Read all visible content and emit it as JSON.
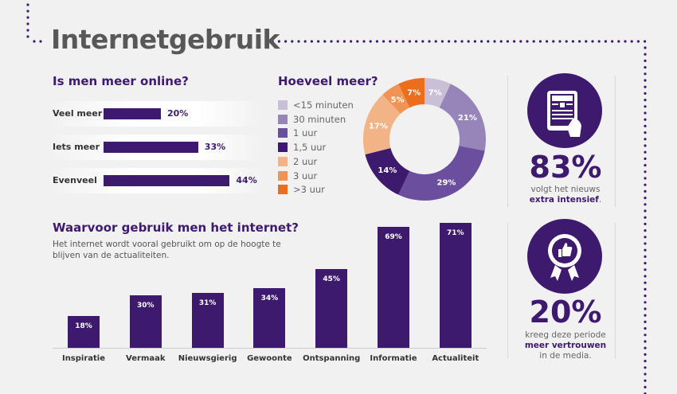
{
  "title": "Internetgebruik",
  "colors": {
    "purple": "#3d1a6e",
    "background": "#f1f1f1",
    "title_grey": "#58585a"
  },
  "chart_data": [
    {
      "type": "bar",
      "orientation": "horizontal",
      "title": "Is men meer online?",
      "categories": [
        "Veel meer",
        "Iets meer",
        "Evenveel"
      ],
      "values": [
        20,
        33,
        44
      ],
      "labels": [
        "20%",
        "33%",
        "44%"
      ]
    },
    {
      "type": "pie",
      "donut": true,
      "title": "Hoeveel meer?",
      "categories": [
        "<15 minuten",
        "30 minuten",
        "1 uur",
        "1,5 uur",
        "2 uur",
        "3 uur",
        ">3 uur"
      ],
      "values": [
        7,
        21,
        29,
        14,
        17,
        5,
        7
      ],
      "labels": [
        "7%",
        "21%",
        "29%",
        "14%",
        "17%",
        "5%",
        "7%"
      ],
      "colors": [
        "#c9c0d8",
        "#9585b8",
        "#6b4f9e",
        "#3d1a6e",
        "#f2b486",
        "#ef9455",
        "#ec6d1c"
      ],
      "legend": "left"
    },
    {
      "type": "bar",
      "title": "Waarvoor gebruik men het internet?",
      "subtitle": "Het internet wordt vooral gebruikt om op de hoogte te blijven van de actualiteiten.",
      "categories": [
        "Inspiratie",
        "Vermaak",
        "Nieuwsgierig",
        "Gewoonte",
        "Ontspanning",
        "Informatie",
        "Actualiteit"
      ],
      "values": [
        18,
        30,
        31,
        34,
        45,
        69,
        71
      ],
      "labels": [
        "18%",
        "30%",
        "31%",
        "34%",
        "45%",
        "69%",
        "71%"
      ]
    }
  ],
  "stats": [
    {
      "icon": "news-tablet-icon",
      "value": "83%",
      "line1": "volgt het nieuws",
      "bold": "extra intensief",
      "after": "."
    },
    {
      "icon": "thumbs-up-badge-icon",
      "value": "20%",
      "line1": "kreeg deze periode",
      "bold": "meer vertrouwen",
      "after": "in de media."
    }
  ]
}
